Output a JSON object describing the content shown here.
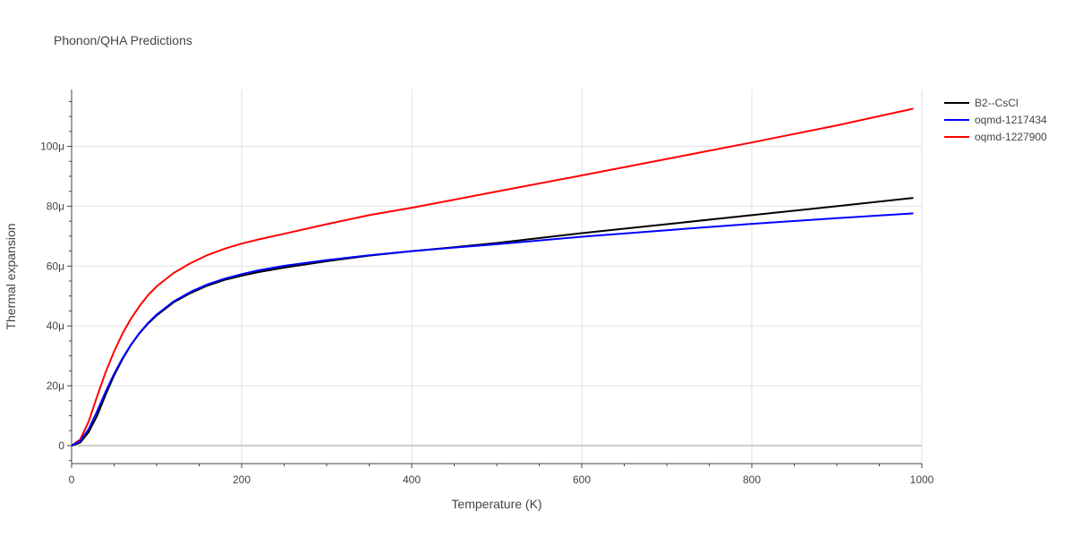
{
  "chart_data": {
    "type": "line",
    "title": "Phonon/QHA Predictions",
    "xlabel": "Temperature (K)",
    "ylabel": "Thermal expansion",
    "xlim": [
      0,
      1000
    ],
    "ylim": [
      -6,
      119
    ],
    "x_ticks": [
      0,
      200,
      400,
      600,
      800,
      1000
    ],
    "y_ticks": [
      0,
      20,
      40,
      60,
      80,
      100
    ],
    "y_tick_labels": [
      "0",
      "20μ",
      "40μ",
      "60μ",
      "80μ",
      "100μ"
    ],
    "y_unit": "μ (×1e-6)",
    "grid": true,
    "legend": "top-right, outside plot",
    "series": [
      {
        "name": "B2--CsCl",
        "color": "#000000",
        "x": [
          0,
          10,
          20,
          30,
          40,
          50,
          60,
          70,
          80,
          90,
          100,
          120,
          140,
          160,
          180,
          200,
          220,
          250,
          300,
          350,
          400,
          450,
          500,
          600,
          700,
          800,
          900,
          990
        ],
        "y": [
          0,
          1,
          4.5,
          10,
          17,
          23.5,
          29,
          33.7,
          37.6,
          40.8,
          43.5,
          47.9,
          51,
          53.5,
          55.4,
          56.8,
          58,
          59.5,
          61.6,
          63.5,
          65,
          66.3,
          67.7,
          71,
          74,
          77,
          80,
          82.8
        ]
      },
      {
        "name": "oqmd-1217434",
        "color": "#0000ff",
        "x": [
          0,
          10,
          20,
          30,
          40,
          50,
          60,
          70,
          80,
          90,
          100,
          120,
          140,
          160,
          180,
          200,
          220,
          250,
          300,
          350,
          400,
          450,
          500,
          600,
          700,
          800,
          900,
          990
        ],
        "y": [
          0,
          1.5,
          5.5,
          11.5,
          18,
          24,
          29.3,
          33.8,
          37.7,
          41,
          43.8,
          48.2,
          51.4,
          53.9,
          55.8,
          57.3,
          58.6,
          60.1,
          62,
          63.6,
          65,
          66.2,
          67.3,
          69.8,
          72,
          74.1,
          76,
          77.6
        ]
      },
      {
        "name": "oqmd-1227900",
        "color": "#ff0000",
        "x": [
          0,
          10,
          20,
          30,
          40,
          50,
          60,
          70,
          80,
          90,
          100,
          120,
          140,
          160,
          180,
          200,
          220,
          250,
          300,
          350,
          400,
          450,
          500,
          600,
          700,
          800,
          900,
          990
        ],
        "y": [
          0,
          2,
          8,
          16.5,
          24.5,
          31.5,
          37.5,
          42.5,
          46.7,
          50.3,
          53.2,
          57.7,
          61,
          63.7,
          65.8,
          67.5,
          68.9,
          70.8,
          74,
          77,
          79.5,
          82.2,
          84.9,
          90.3,
          95.8,
          101.3,
          107,
          112.6
        ]
      }
    ]
  }
}
